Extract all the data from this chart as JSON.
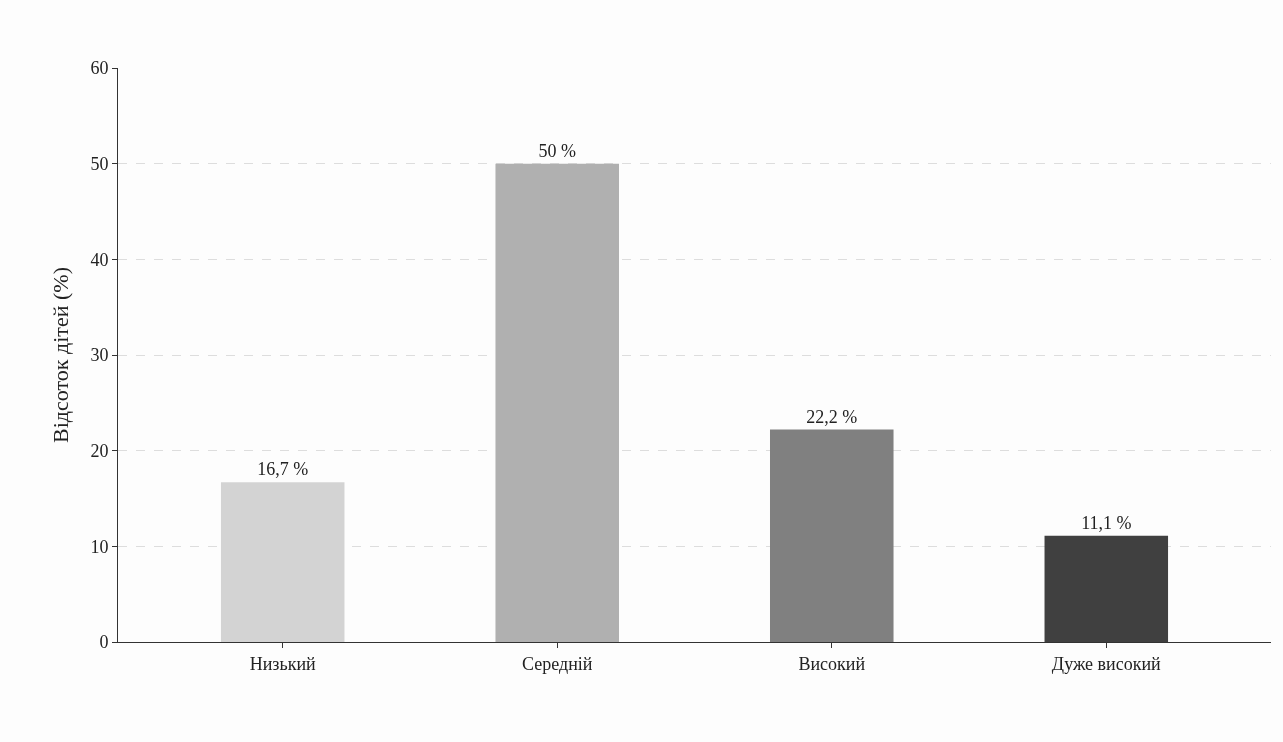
{
  "chart_data": {
    "type": "bar",
    "ylabel": "Відсоток дітей (%)",
    "categories": [
      "Низький",
      "Середній",
      "Високий",
      "Дуже високий"
    ],
    "values": [
      16.7,
      50,
      22.2,
      11.1
    ],
    "colors": [
      "#d3d3d3",
      "#b0b0b0",
      "#808080",
      "#404040"
    ],
    "value_labels": [
      "16,7 %",
      "50 %",
      "22,2 %",
      "11,1 %"
    ],
    "ylim": [
      0,
      60
    ],
    "yticks": [
      0,
      10,
      20,
      30,
      40,
      50,
      60
    ],
    "grid": "y",
    "legend": false
  }
}
